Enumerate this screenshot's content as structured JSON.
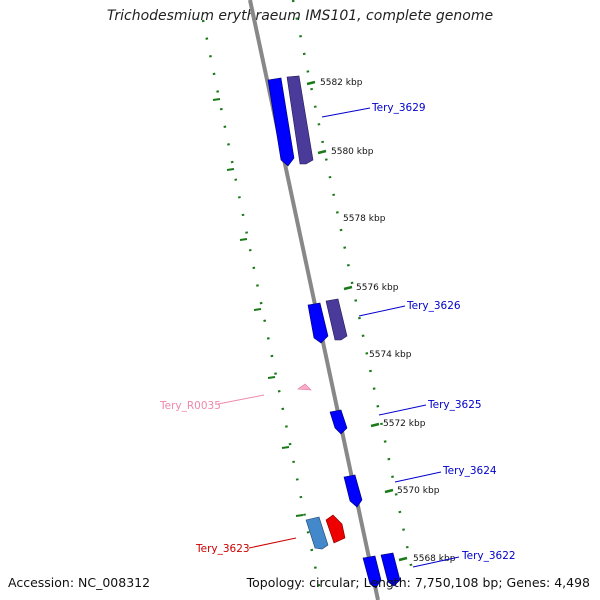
{
  "title": "Trichodesmium erythraeum IMS101, complete genome",
  "footer": {
    "accession": "Accession: NC_008312",
    "summary": "Topology: circular; Length: 7,750,108 bp; Genes: 4,498"
  },
  "ticks": [
    {
      "label": "5582 kbp"
    },
    {
      "label": "5580 kbp"
    },
    {
      "label": "5578 kbp"
    },
    {
      "label": "5576 kbp"
    },
    {
      "label": "5574 kbp"
    },
    {
      "label": "5572 kbp"
    },
    {
      "label": "5570 kbp"
    },
    {
      "label": "5568 kbp"
    }
  ],
  "genes": [
    {
      "label": "Tery_3629",
      "color": "#0000cc"
    },
    {
      "label": "Tery_3626",
      "color": "#0000cc"
    },
    {
      "label": "Tery_3625",
      "color": "#0000cc"
    },
    {
      "label": "Tery_3624",
      "color": "#0000cc"
    },
    {
      "label": "Tery_3622",
      "color": "#0000cc"
    },
    {
      "label": "Tery_R0035",
      "color": "#ee88aa"
    },
    {
      "label": "Tery_3623",
      "color": "#cc0000"
    }
  ],
  "colors": {
    "backbone": "#888888",
    "ruler_dots": "#1a7a1a",
    "cds_forward": "#0000ff",
    "cds_alt": "#4a3a9a",
    "cds_light": "#4488cc",
    "rna": "#ffaacc",
    "highlight": "#ee0000"
  }
}
